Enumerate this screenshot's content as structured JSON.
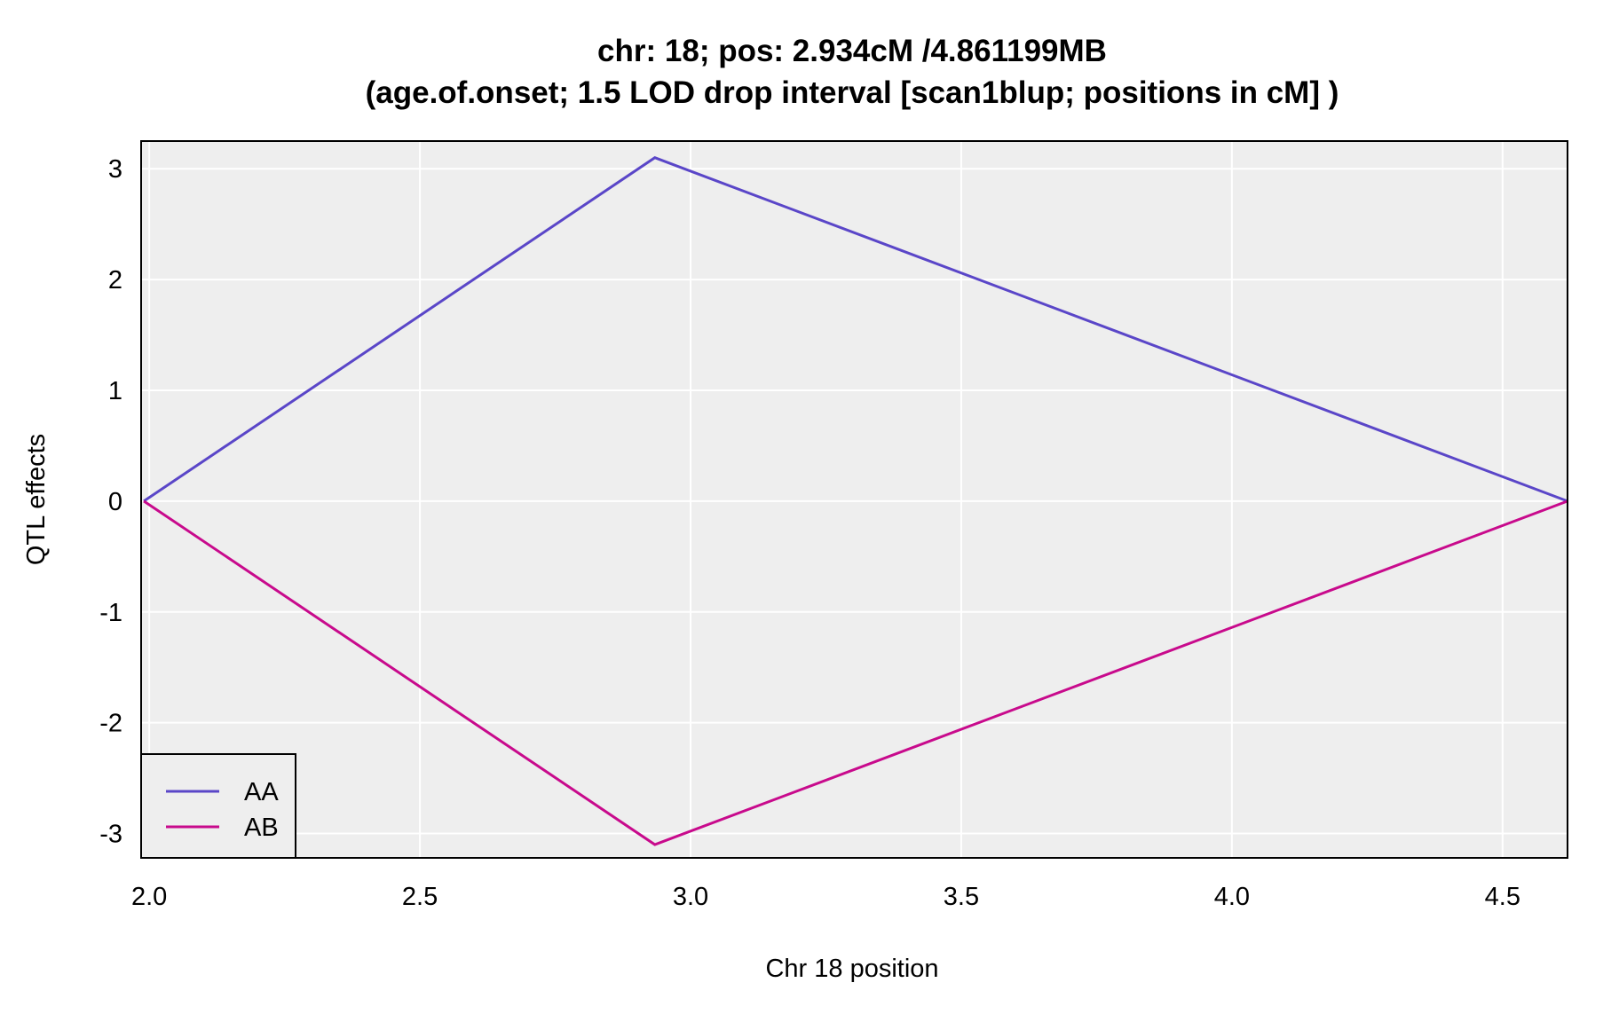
{
  "chart_data": {
    "type": "line",
    "title": "chr: 18; pos: 2.934cM /4.861199MB",
    "subtitle": "(age.of.onset; 1.5 LOD drop interval [scan1blup; positions in cM] )",
    "xlabel": "Chr 18 position",
    "ylabel": "QTL effects",
    "xlim": [
      1.985,
      4.62
    ],
    "ylim": [
      -3.22,
      3.25
    ],
    "x_ticks": [
      2.0,
      2.5,
      3.0,
      3.5,
      4.0,
      4.5
    ],
    "x_tick_labels": [
      "2.0",
      "2.5",
      "3.0",
      "3.5",
      "4.0",
      "4.5"
    ],
    "y_ticks": [
      3,
      2,
      1,
      0,
      -1,
      -2,
      -3
    ],
    "y_tick_labels": [
      "3",
      "2",
      "1",
      "0",
      "-1",
      "-2",
      "-3"
    ],
    "grid": true,
    "background_color": "#eeeeee",
    "grid_color": "#ffffff",
    "legend_position": "bottom-left",
    "series": [
      {
        "name": "AA",
        "color": "#5a46c8",
        "x": [
          1.99,
          2.934,
          4.62
        ],
        "y": [
          0,
          3.1,
          0
        ]
      },
      {
        "name": "AB",
        "color": "#c80a8c",
        "x": [
          1.99,
          2.934,
          4.62
        ],
        "y": [
          0,
          -3.1,
          0
        ]
      }
    ]
  }
}
